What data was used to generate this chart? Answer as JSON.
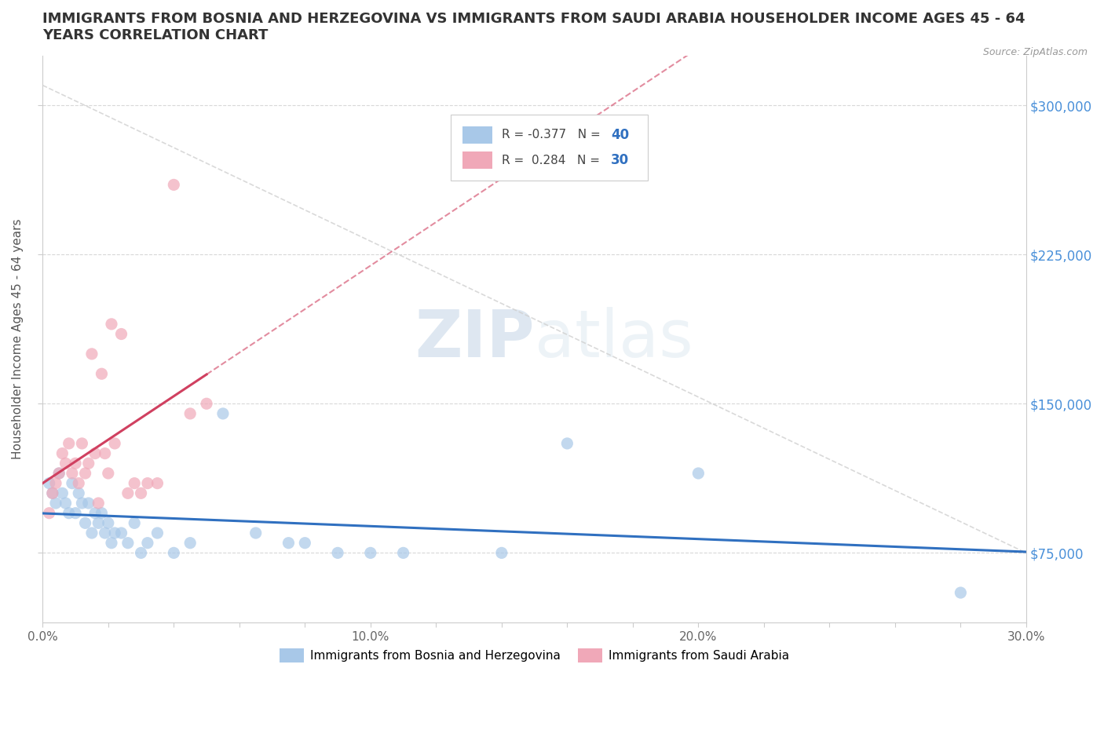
{
  "title": "IMMIGRANTS FROM BOSNIA AND HERZEGOVINA VS IMMIGRANTS FROM SAUDI ARABIA HOUSEHOLDER INCOME AGES 45 - 64\nYEARS CORRELATION CHART",
  "source_text": "Source: ZipAtlas.com",
  "ylabel": "Householder Income Ages 45 - 64 years",
  "xlim": [
    0.0,
    0.3
  ],
  "ylim": [
    40000,
    325000
  ],
  "yticks": [
    75000,
    150000,
    225000,
    300000
  ],
  "xticks": [
    0.0,
    0.02,
    0.04,
    0.06,
    0.08,
    0.1,
    0.12,
    0.14,
    0.16,
    0.18,
    0.2,
    0.22,
    0.24,
    0.26,
    0.28,
    0.3
  ],
  "bosnia_color": "#a8c8e8",
  "saudi_color": "#f0a8b8",
  "bosnia_line_color": "#3070c0",
  "saudi_line_color": "#d04060",
  "diag_line_color": "#d0d0d0",
  "grid_color": "#d8d8d8",
  "R_bosnia": -0.377,
  "N_bosnia": 40,
  "R_saudi": 0.284,
  "N_saudi": 30,
  "bosnia_x": [
    0.002,
    0.003,
    0.004,
    0.005,
    0.006,
    0.007,
    0.008,
    0.009,
    0.01,
    0.011,
    0.012,
    0.013,
    0.014,
    0.015,
    0.016,
    0.017,
    0.018,
    0.019,
    0.02,
    0.021,
    0.022,
    0.024,
    0.026,
    0.028,
    0.03,
    0.032,
    0.035,
    0.04,
    0.045,
    0.055,
    0.065,
    0.075,
    0.08,
    0.09,
    0.1,
    0.11,
    0.14,
    0.16,
    0.2,
    0.28
  ],
  "bosnia_y": [
    110000,
    105000,
    100000,
    115000,
    105000,
    100000,
    95000,
    110000,
    95000,
    105000,
    100000,
    90000,
    100000,
    85000,
    95000,
    90000,
    95000,
    85000,
    90000,
    80000,
    85000,
    85000,
    80000,
    90000,
    75000,
    80000,
    85000,
    75000,
    80000,
    145000,
    85000,
    80000,
    80000,
    75000,
    75000,
    75000,
    75000,
    130000,
    115000,
    55000
  ],
  "saudi_x": [
    0.002,
    0.003,
    0.004,
    0.005,
    0.006,
    0.007,
    0.008,
    0.009,
    0.01,
    0.011,
    0.012,
    0.013,
    0.014,
    0.015,
    0.016,
    0.017,
    0.018,
    0.019,
    0.02,
    0.021,
    0.022,
    0.024,
    0.026,
    0.028,
    0.03,
    0.032,
    0.035,
    0.04,
    0.045,
    0.05
  ],
  "saudi_y": [
    95000,
    105000,
    110000,
    115000,
    125000,
    120000,
    130000,
    115000,
    120000,
    110000,
    130000,
    115000,
    120000,
    175000,
    125000,
    100000,
    165000,
    125000,
    115000,
    190000,
    130000,
    185000,
    105000,
    110000,
    105000,
    110000,
    110000,
    260000,
    145000,
    150000
  ],
  "watermark_zip": "ZIP",
  "watermark_atlas": "atlas",
  "background_color": "#ffffff",
  "legend_bosnia_label": "Immigrants from Bosnia and Herzegovina",
  "legend_saudi_label": "Immigrants from Saudi Arabia"
}
